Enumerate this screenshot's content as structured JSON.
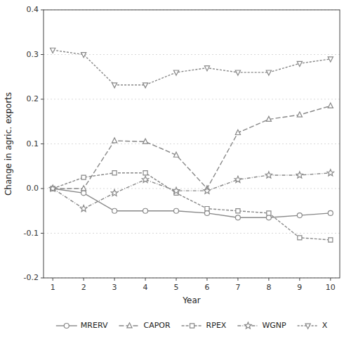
{
  "chart_data": {
    "type": "line",
    "x_label": "Year",
    "y_label": "Change in agric. exports",
    "x": [
      1,
      2,
      3,
      4,
      5,
      6,
      7,
      8,
      9,
      10
    ],
    "series": [
      {
        "name": "MRERV",
        "color": "#888888",
        "marker": "circle",
        "line_style": "solid",
        "values": [
          0.0,
          -0.01,
          -0.05,
          -0.05,
          -0.05,
          -0.055,
          -0.065,
          -0.065,
          -0.06,
          -0.055
        ]
      },
      {
        "name": "CAPOR",
        "color": "#888888",
        "marker": "triangle-up",
        "line_style": "long-dash",
        "values": [
          0.0,
          0.0,
          0.107,
          0.105,
          0.075,
          0.0,
          0.125,
          0.155,
          0.165,
          0.185
        ]
      },
      {
        "name": "RPEX",
        "color": "#888888",
        "marker": "square",
        "line_style": "dash",
        "values": [
          0.0,
          0.025,
          0.035,
          0.035,
          -0.01,
          -0.045,
          -0.05,
          -0.055,
          -0.11,
          -0.115
        ]
      },
      {
        "name": "WGNP",
        "color": "#888888",
        "marker": "star",
        "line_style": "dash-dot",
        "values": [
          0.0,
          -0.045,
          -0.01,
          0.02,
          -0.005,
          -0.005,
          0.02,
          0.03,
          0.03,
          0.035
        ]
      },
      {
        "name": "X",
        "color": "#888888",
        "marker": "triangle-down",
        "line_style": "short-dash",
        "values": [
          0.31,
          0.3,
          0.232,
          0.232,
          0.26,
          0.27,
          0.26,
          0.26,
          0.28,
          0.29
        ]
      }
    ],
    "xlim": [
      0.7,
      10.3
    ],
    "ylim": [
      -0.2,
      0.4
    ],
    "xticks": [
      1,
      2,
      3,
      4,
      5,
      6,
      7,
      8,
      9,
      10
    ],
    "yticks": [
      -0.2,
      -0.1,
      {
        "value": 0.0,
        "label": "0.0"
      },
      0.1,
      0.2,
      0.3,
      0.4
    ],
    "grid": true,
    "legend": "bottom"
  }
}
